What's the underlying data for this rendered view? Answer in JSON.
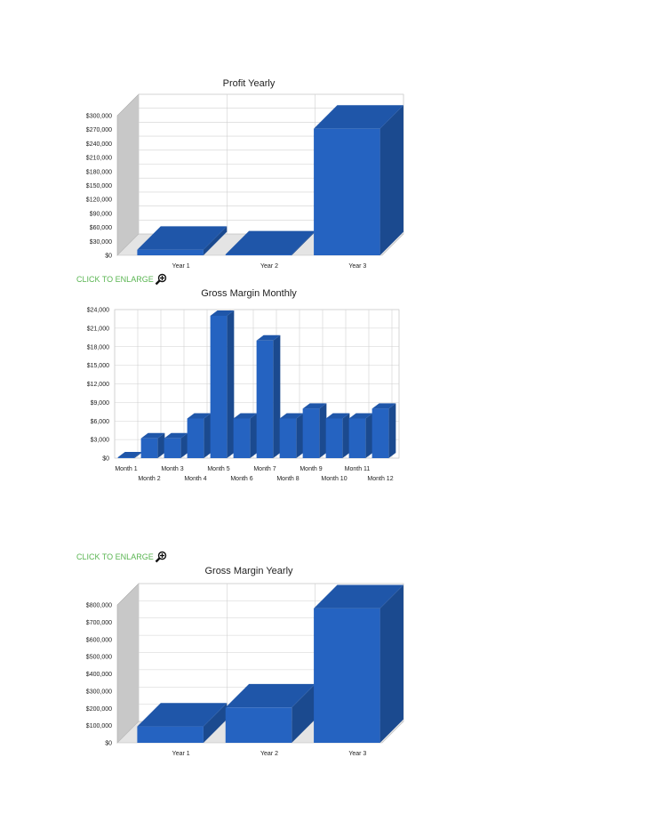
{
  "enlarge_links": [
    {
      "label": "CLICK TO ENLARGE"
    },
    {
      "label": "CLICK TO ENLARGE"
    }
  ],
  "colors": {
    "bar_front": "#2563c1",
    "bar_top": "#1f56a9",
    "bar_side": "#1b4a8f",
    "wall": "#c8c8c8",
    "grid": "#d0d0d0",
    "link": "#5ab552"
  },
  "chart_data": [
    {
      "type": "bar",
      "title": "Profit Yearly",
      "categories": [
        "Year 1",
        "Year 2",
        "Year 3"
      ],
      "values": [
        12000,
        0,
        272000
      ],
      "yticks": [
        "$0",
        "$30,000",
        "$60,000",
        "$90,000",
        "$120,000",
        "$150,000",
        "$180,000",
        "$210,000",
        "$240,000",
        "$270,000",
        "$300,000"
      ],
      "ylim": [
        0,
        300000
      ],
      "grid": true,
      "style": "3d"
    },
    {
      "type": "bar",
      "title": "Gross Margin Monthly",
      "categories": [
        "Month 1",
        "Month 2",
        "Month 3",
        "Month 4",
        "Month 5",
        "Month 6",
        "Month 7",
        "Month 8",
        "Month 9",
        "Month 10",
        "Month 11",
        "Month 12"
      ],
      "values": [
        0,
        3200,
        3200,
        6400,
        23000,
        6400,
        19000,
        6400,
        8000,
        6400,
        6400,
        8000
      ],
      "yticks": [
        "$0",
        "$3,000",
        "$6,000",
        "$9,000",
        "$12,000",
        "$15,000",
        "$18,000",
        "$21,000",
        "$24,000"
      ],
      "ylim": [
        0,
        24000
      ],
      "grid": true,
      "style": "3d"
    },
    {
      "type": "bar",
      "title": "Gross Margin Yearly",
      "categories": [
        "Year 1",
        "Year 2",
        "Year 3"
      ],
      "values": [
        95000,
        205000,
        780000
      ],
      "yticks": [
        "$0",
        "$100,000",
        "$200,000",
        "$300,000",
        "$400,000",
        "$500,000",
        "$600,000",
        "$700,000",
        "$800,000"
      ],
      "ylim": [
        0,
        800000
      ],
      "grid": true,
      "style": "3d"
    }
  ]
}
